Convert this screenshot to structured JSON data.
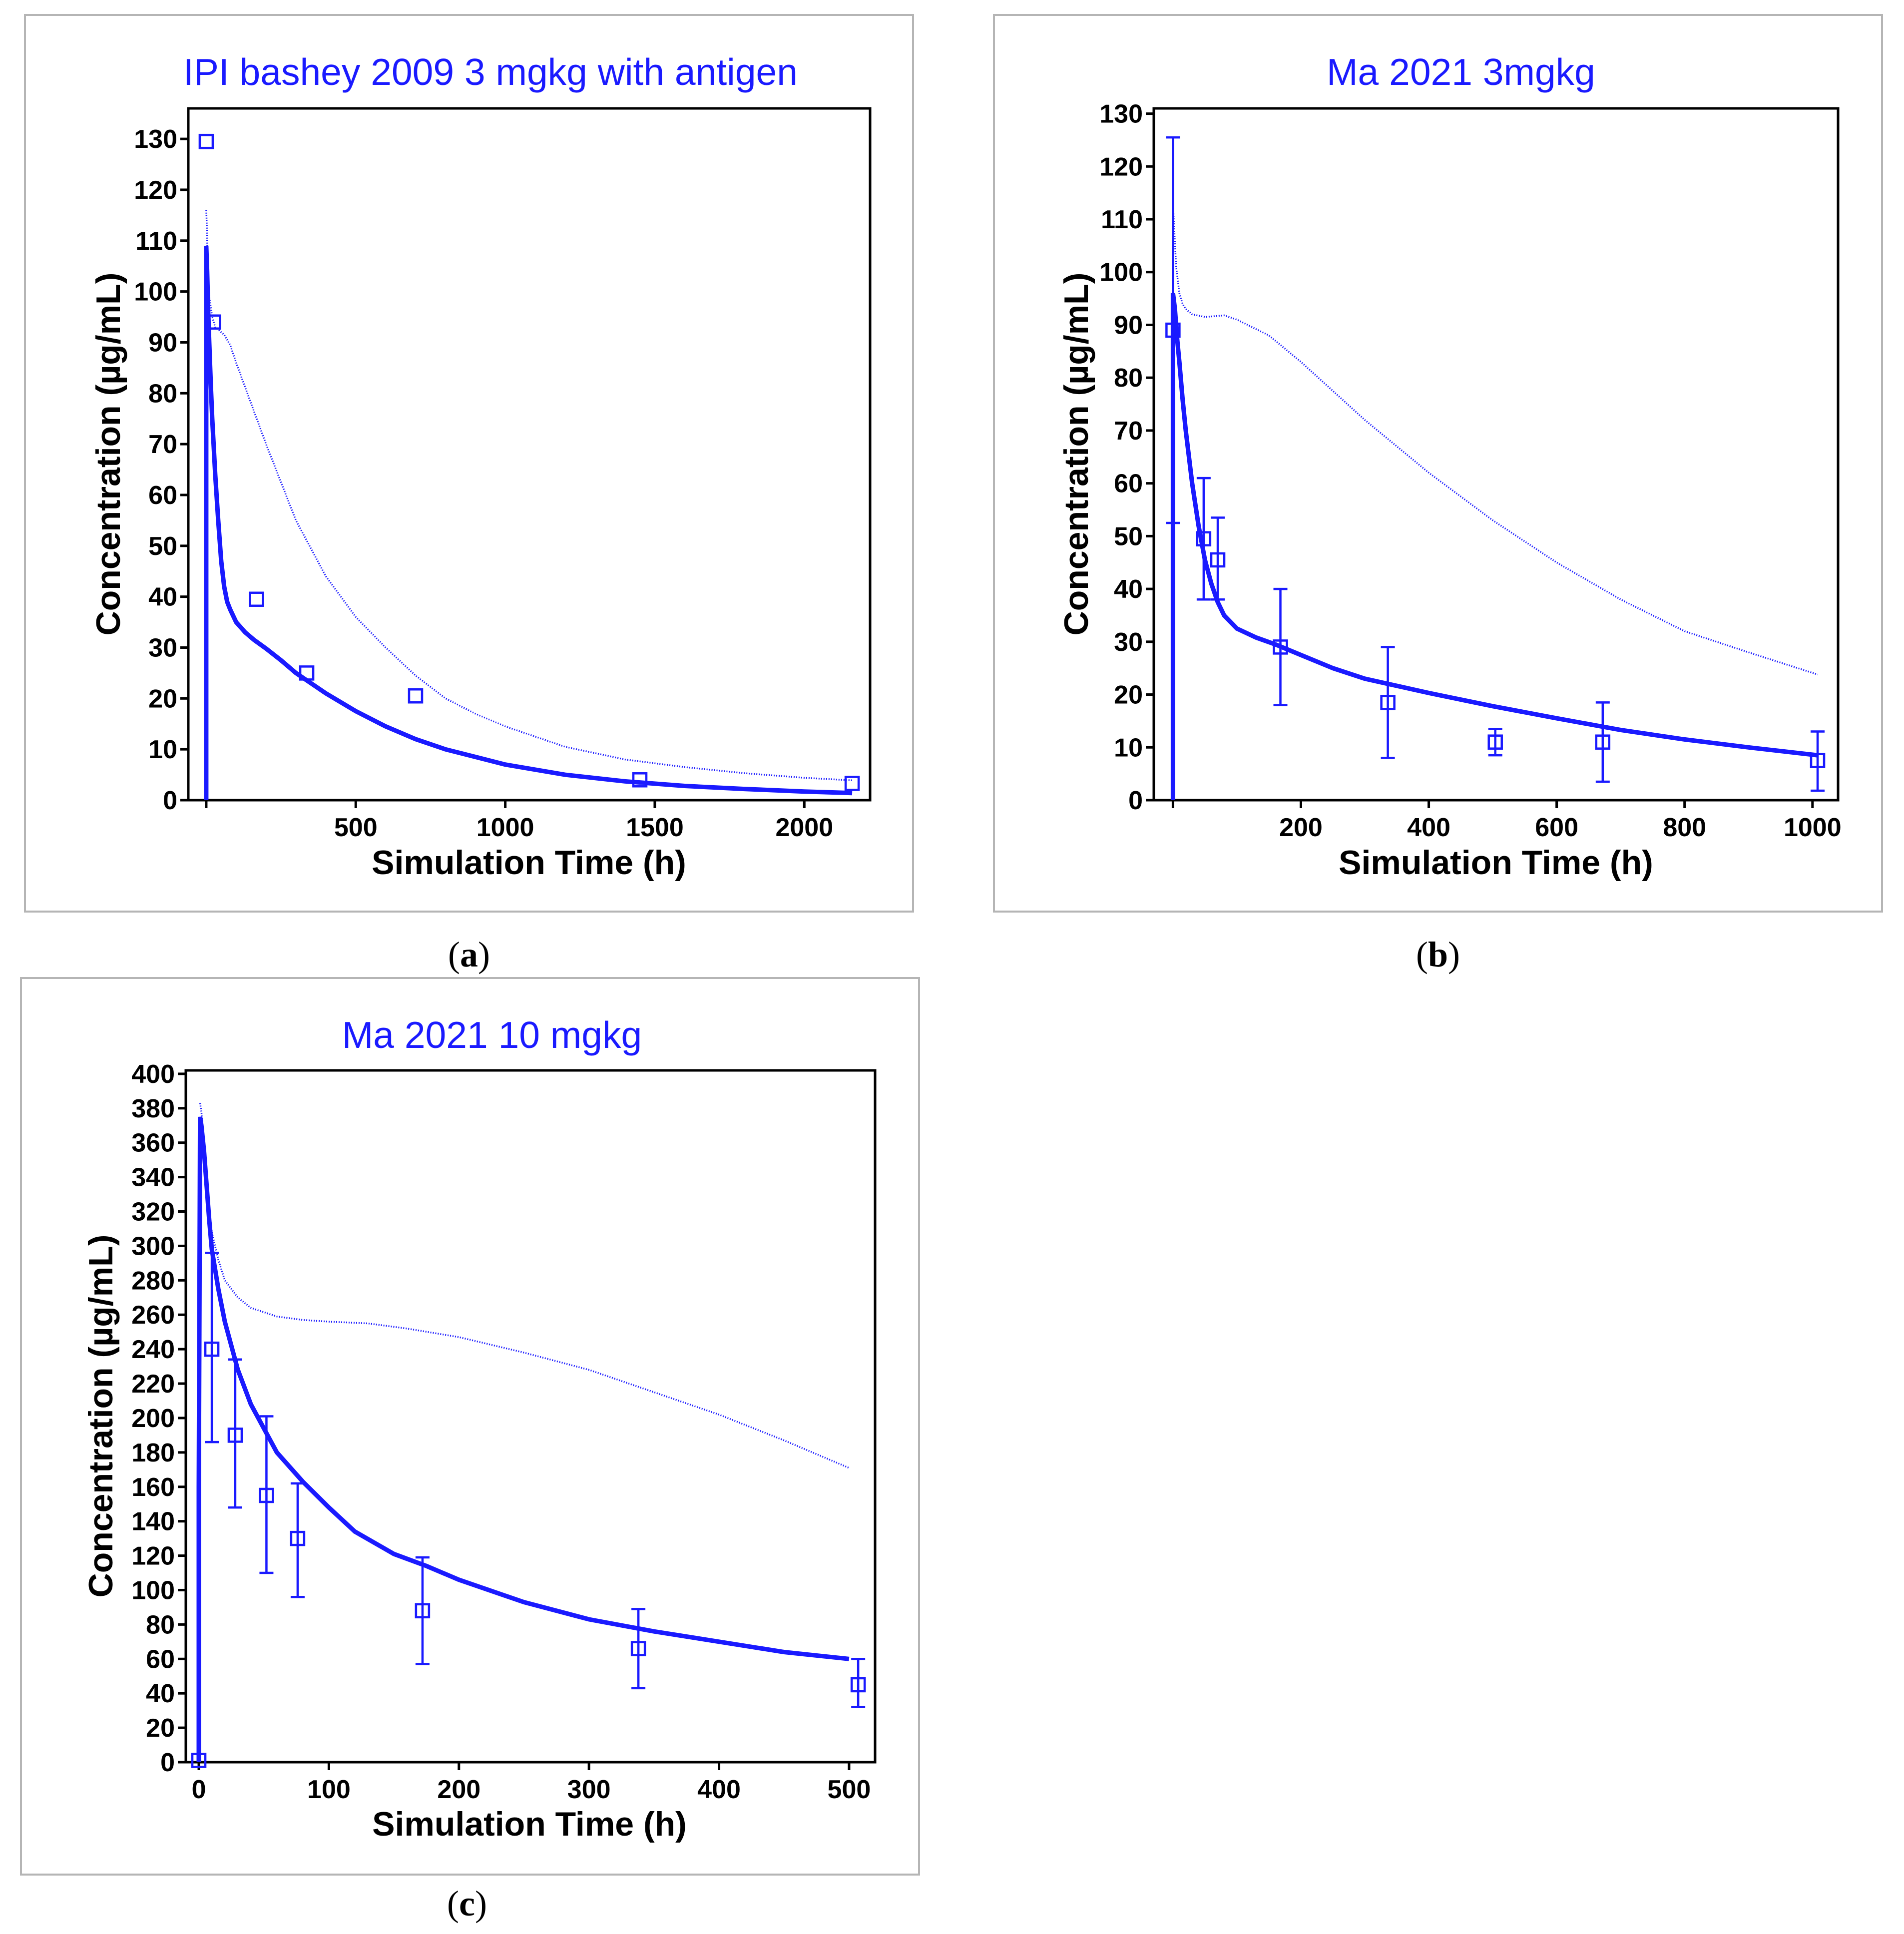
{
  "chart_data": [
    {
      "id": "a",
      "type": "line",
      "title": "IPI bashey 2009 3 mgkg with antigen",
      "caption": "a",
      "xlabel": "Simulation Time (h)",
      "ylabel": "Concentration (µg/mL)",
      "xlim": [
        -60,
        2220
      ],
      "ylim": [
        0,
        136
      ],
      "xticks": [
        0,
        500,
        1000,
        1500,
        2000
      ],
      "xtick_labels": [
        "",
        "500",
        "1000",
        "1500",
        "2000"
      ],
      "yticks": [
        0,
        10,
        20,
        30,
        40,
        50,
        60,
        70,
        80,
        90,
        100,
        110,
        120,
        130
      ],
      "color": "#1a1aff",
      "series": [
        {
          "name": "simulation (solid)",
          "style": "solid",
          "x": [
            0,
            0,
            3,
            6,
            10,
            15,
            20,
            30,
            40,
            50,
            60,
            70,
            80,
            100,
            130,
            160,
            200,
            250,
            300,
            350,
            400,
            500,
            600,
            700,
            800,
            900,
            1000,
            1200,
            1400,
            1600,
            1800,
            2000,
            2160
          ],
          "y": [
            0,
            109,
            104,
            97,
            90,
            82,
            75,
            64,
            55,
            47,
            42,
            39,
            37.5,
            35,
            33,
            31.5,
            29.8,
            27.5,
            25,
            23,
            21,
            17.5,
            14.5,
            12,
            10,
            8.5,
            7,
            5,
            3.7,
            2.8,
            2.2,
            1.7,
            1.4
          ]
        },
        {
          "name": "simulation (dotted)",
          "style": "dotted",
          "x": [
            0,
            2,
            5,
            10,
            20,
            30,
            40,
            60,
            80,
            100,
            150,
            200,
            300,
            400,
            500,
            600,
            700,
            800,
            900,
            1000,
            1200,
            1400,
            1600,
            1800,
            2000,
            2160
          ],
          "y": [
            116,
            113,
            105,
            99,
            95,
            93,
            92.5,
            91.5,
            89.5,
            86,
            78,
            70,
            55,
            44,
            36,
            30,
            24.5,
            20,
            17,
            14.5,
            10.5,
            8,
            6.5,
            5.3,
            4.4,
            3.9
          ]
        },
        {
          "name": "observed",
          "style": "markers",
          "x": [
            0,
            24,
            168,
            336,
            700,
            1450,
            2160
          ],
          "y": [
            129.5,
            94,
            39.5,
            25,
            20.5,
            4,
            3.3
          ]
        }
      ]
    },
    {
      "id": "b",
      "type": "line",
      "title": "Ma 2021 3mgkg",
      "caption": "b",
      "xlabel": "Simulation Time (h)",
      "ylabel": "Concentration (µg/mL)",
      "xlim": [
        -30,
        1040
      ],
      "ylim": [
        0,
        131
      ],
      "xticks": [
        0,
        200,
        400,
        600,
        800,
        1000
      ],
      "xtick_labels": [
        "",
        "200",
        "400",
        "600",
        "800",
        "1000"
      ],
      "yticks": [
        0,
        10,
        20,
        30,
        40,
        50,
        60,
        70,
        80,
        90,
        100,
        110,
        120,
        130
      ],
      "color": "#1a1aff",
      "series": [
        {
          "name": "simulation (solid)",
          "style": "solid",
          "x": [
            0,
            0,
            3,
            6,
            10,
            15,
            20,
            30,
            40,
            50,
            60,
            70,
            80,
            100,
            130,
            160,
            200,
            250,
            300,
            400,
            500,
            600,
            700,
            800,
            900,
            1008
          ],
          "y": [
            0,
            96,
            93,
            88,
            83,
            76,
            70,
            60,
            52,
            45.5,
            41,
            37.5,
            35,
            32.5,
            30.8,
            29.5,
            27.5,
            25,
            23,
            20.3,
            17.8,
            15.5,
            13.3,
            11.5,
            10,
            8.5
          ]
        },
        {
          "name": "simulation (dotted)",
          "style": "dotted",
          "x": [
            0,
            2,
            5,
            10,
            15,
            20,
            30,
            50,
            80,
            100,
            150,
            200,
            300,
            400,
            500,
            600,
            700,
            800,
            900,
            1008
          ],
          "y": [
            113,
            108,
            101,
            96,
            94,
            93,
            92,
            91.5,
            91.8,
            91,
            88,
            83,
            72,
            62,
            53,
            45,
            38,
            32,
            28,
            23.8
          ]
        },
        {
          "name": "observed",
          "style": "markers",
          "x": [
            0,
            48,
            70,
            168,
            336,
            504,
            672,
            1008
          ],
          "y": [
            89,
            49.5,
            45.5,
            29,
            18.5,
            11,
            11,
            7.5
          ],
          "err_low": [
            52.5,
            38,
            38,
            18,
            8,
            8.5,
            3.5,
            1.8
          ],
          "err_high": [
            125.5,
            61,
            53.5,
            40,
            29,
            13.5,
            18.5,
            13
          ]
        }
      ]
    },
    {
      "id": "c",
      "type": "line",
      "title": "Ma 2021 10 mgkg",
      "caption": "c",
      "xlabel": "Simulation Time (h)",
      "ylabel": "Concentration (µg/mL)",
      "xlim": [
        -10,
        520
      ],
      "ylim": [
        0,
        402
      ],
      "xticks": [
        0,
        100,
        200,
        300,
        400,
        500
      ],
      "xtick_labels": [
        "0",
        "100",
        "200",
        "300",
        "400",
        "500"
      ],
      "yticks": [
        0,
        20,
        40,
        60,
        80,
        100,
        120,
        140,
        160,
        180,
        200,
        220,
        240,
        260,
        280,
        300,
        320,
        340,
        360,
        380,
        400
      ],
      "color": "#1a1aff",
      "series": [
        {
          "name": "simulation (solid)",
          "style": "solid",
          "x": [
            0,
            0,
            1,
            2,
            4,
            6,
            8,
            10,
            15,
            20,
            30,
            40,
            50,
            60,
            80,
            100,
            120,
            150,
            175,
            200,
            250,
            300,
            350,
            400,
            450,
            500
          ],
          "y": [
            0,
            160,
            375,
            370,
            355,
            335,
            315,
            298,
            275,
            256,
            228,
            208,
            194,
            180,
            163,
            148,
            134,
            121,
            114,
            106,
            93,
            83,
            76,
            70,
            64,
            60
          ]
        },
        {
          "name": "simulation (dotted)",
          "style": "dotted",
          "x": [
            1,
            2,
            4,
            6,
            8,
            10,
            15,
            20,
            30,
            40,
            60,
            80,
            100,
            130,
            160,
            200,
            250,
            300,
            350,
            400,
            450,
            500
          ],
          "y": [
            383,
            378,
            360,
            340,
            322,
            308,
            292,
            280,
            270,
            264,
            259,
            257,
            256,
            255,
            252,
            247,
            238,
            228,
            215,
            202,
            187,
            171
          ]
        },
        {
          "name": "observed",
          "style": "markers",
          "x": [
            0,
            10,
            28,
            52,
            76,
            172,
            338,
            507
          ],
          "y": [
            1,
            240,
            190,
            155,
            130,
            88,
            66,
            45
          ],
          "err_low": [
            null,
            186,
            148,
            110,
            96,
            57,
            43,
            32
          ],
          "err_high": [
            null,
            296,
            234,
            201,
            162,
            119,
            89,
            60
          ]
        }
      ]
    }
  ]
}
